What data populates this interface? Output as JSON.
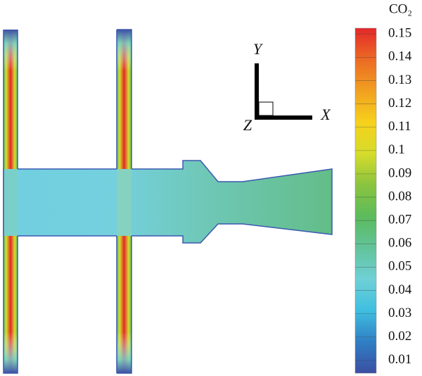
{
  "chart_data": {
    "type": "contour",
    "colorbar_title": "CO₂",
    "triad_labels": [
      "X",
      "Y",
      "Z"
    ],
    "clim": [
      0.0045,
      0.1525
    ],
    "colorbar_ticks": [
      0.01,
      0.02,
      0.03,
      0.04,
      0.05,
      0.06,
      0.07,
      0.08,
      0.09,
      0.1,
      0.11,
      0.12,
      0.13,
      0.14,
      0.15
    ],
    "colormap": [
      "#3b4ea3",
      "#2f7fc4",
      "#3fbfe0",
      "#6fd0d6",
      "#62c39a",
      "#5cbb5c",
      "#8ac43f",
      "#d6dc2a",
      "#f6d11c",
      "#f1a020",
      "#ec6a24",
      "#e4282a"
    ]
  }
}
